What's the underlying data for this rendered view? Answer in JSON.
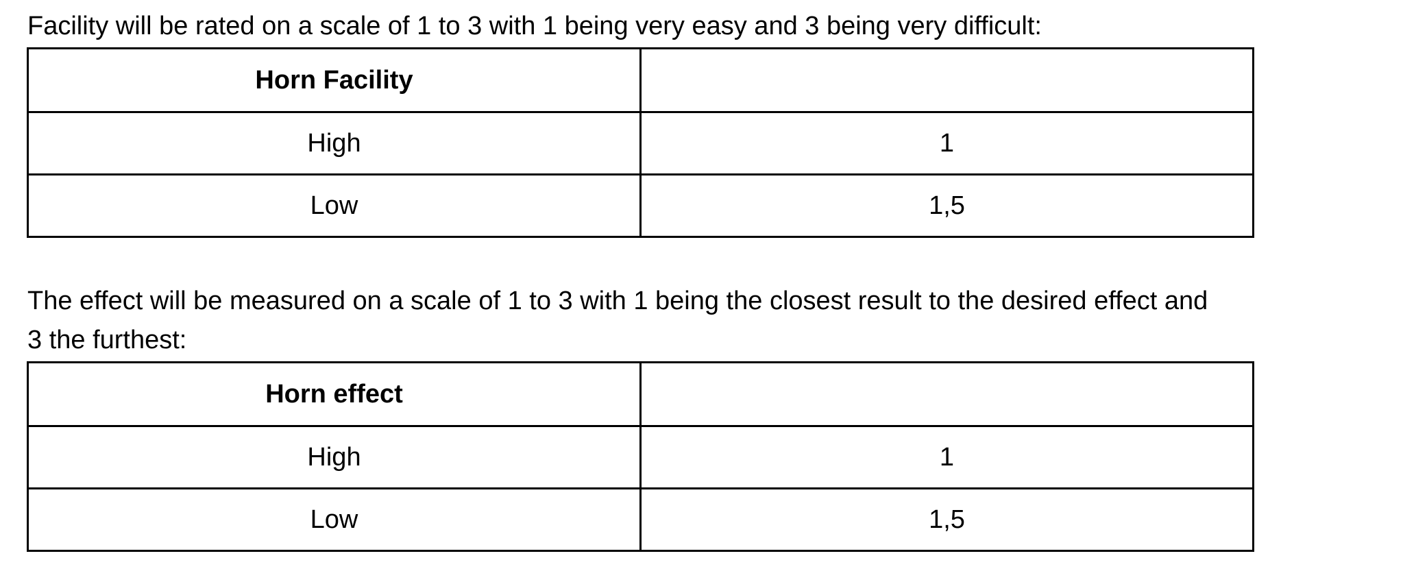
{
  "paragraphs": [
    "Facility will be rated on a scale of 1 to 3 with 1 being very easy and 3 being very difficult:",
    "The effect will be measured on a scale of 1 to 3 with 1 being the closest result to the desired effect and",
    "3 the furthest:"
  ],
  "tables": [
    {
      "header": [
        "Horn Facility",
        ""
      ],
      "rows": [
        [
          "High",
          "1"
        ],
        [
          "Low",
          "1,5"
        ]
      ]
    },
    {
      "header": [
        "Horn effect",
        ""
      ],
      "rows": [
        [
          "High",
          "1"
        ],
        [
          "Low",
          "1,5"
        ]
      ]
    }
  ]
}
